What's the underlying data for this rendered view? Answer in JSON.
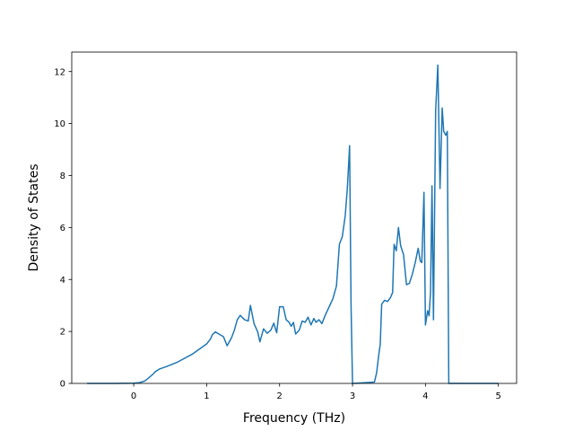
{
  "chart_data": {
    "type": "line",
    "title": "",
    "xlabel": "Frequency (THz)",
    "ylabel": "Density of States",
    "xlim": [
      -0.85,
      5.25
    ],
    "ylim": [
      0,
      12.75
    ],
    "xticks": [
      0,
      1,
      2,
      3,
      4,
      5
    ],
    "yticks": [
      0,
      2,
      4,
      6,
      8,
      10,
      12
    ],
    "grid": false,
    "legend": "none",
    "series": [
      {
        "color": "#1f77b4",
        "x": [
          -0.64,
          -0.3,
          0.0,
          0.08,
          0.15,
          0.2,
          0.25,
          0.3,
          0.35,
          0.45,
          0.6,
          0.8,
          0.95,
          1.0,
          1.05,
          1.08,
          1.12,
          1.18,
          1.23,
          1.28,
          1.34,
          1.38,
          1.42,
          1.46,
          1.52,
          1.57,
          1.6,
          1.65,
          1.7,
          1.73,
          1.78,
          1.83,
          1.88,
          1.92,
          1.96,
          2.0,
          2.05,
          2.09,
          2.13,
          2.16,
          2.19,
          2.22,
          2.27,
          2.31,
          2.35,
          2.39,
          2.43,
          2.47,
          2.5,
          2.54,
          2.58,
          2.63,
          2.68,
          2.73,
          2.78,
          2.82,
          2.86,
          2.9,
          2.93,
          2.96,
          2.98,
          3.0,
          3.02,
          3.3,
          3.33,
          3.36,
          3.38,
          3.4,
          3.44,
          3.48,
          3.52,
          3.55,
          3.57,
          3.6,
          3.63,
          3.66,
          3.7,
          3.74,
          3.78,
          3.82,
          3.86,
          3.9,
          3.93,
          3.95,
          3.98,
          4.0,
          4.03,
          4.05,
          4.07,
          4.09,
          4.11,
          4.14,
          4.17,
          4.2,
          4.23,
          4.25,
          4.28,
          4.3,
          4.32,
          4.35,
          4.38,
          4.4,
          4.42,
          4.44,
          4.47,
          4.5,
          4.52,
          4.53,
          5.0
        ],
        "y": [
          0,
          0,
          0.01,
          0.03,
          0.09,
          0.2,
          0.32,
          0.46,
          0.55,
          0.65,
          0.82,
          1.12,
          1.42,
          1.52,
          1.7,
          1.88,
          1.98,
          1.88,
          1.8,
          1.45,
          1.75,
          2.05,
          2.45,
          2.62,
          2.45,
          2.4,
          3.0,
          2.3,
          1.98,
          1.6,
          2.1,
          1.93,
          2.05,
          2.32,
          1.95,
          2.95,
          2.95,
          2.45,
          2.35,
          2.2,
          2.35,
          1.9,
          2.05,
          2.4,
          2.35,
          2.55,
          2.25,
          2.5,
          2.35,
          2.45,
          2.3,
          2.65,
          2.95,
          3.25,
          3.75,
          5.35,
          5.65,
          6.45,
          7.55,
          9.15,
          3.0,
          0,
          0,
          0.05,
          0.4,
          1.1,
          1.5,
          3.05,
          3.2,
          3.15,
          3.3,
          3.5,
          5.35,
          5.1,
          6.0,
          5.3,
          4.95,
          3.8,
          3.85,
          4.2,
          4.65,
          5.2,
          4.7,
          4.65,
          7.35,
          2.25,
          2.8,
          2.6,
          3.5,
          7.6,
          2.45,
          10.5,
          12.25,
          7.5,
          10.6,
          9.7,
          9.55,
          9.7,
          0.0,
          0,
          0,
          0,
          0,
          0,
          0,
          0,
          0,
          0,
          0
        ]
      }
    ]
  }
}
